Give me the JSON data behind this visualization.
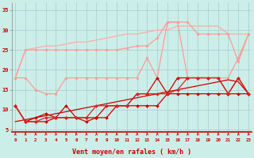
{
  "background_color": "#cceee8",
  "grid_color": "#aacccc",
  "xlabel": "Vent moyen/en rafales ( km/h )",
  "xlabel_color": "#cc0000",
  "tick_color": "#cc0000",
  "x_ticks": [
    0,
    1,
    2,
    3,
    4,
    5,
    6,
    7,
    8,
    9,
    10,
    11,
    12,
    13,
    14,
    15,
    16,
    17,
    18,
    19,
    20,
    21,
    22,
    23
  ],
  "ylim": [
    4.5,
    37
  ],
  "xlim": [
    -0.3,
    23.3
  ],
  "yticks": [
    5,
    10,
    15,
    20,
    25,
    30,
    35
  ],
  "series": [
    {
      "x": [
        0,
        1,
        2,
        3,
        4,
        5,
        6,
        7,
        8,
        9,
        10,
        11,
        12,
        13,
        14,
        15,
        16,
        17,
        18,
        19,
        20,
        21,
        22,
        23
      ],
      "y": [
        18,
        25,
        25.5,
        26,
        26,
        26.5,
        27,
        27,
        27.5,
        28,
        28.5,
        29,
        29,
        29.5,
        30,
        30,
        31,
        31,
        31,
        31,
        31,
        29,
        29,
        29
      ],
      "color": "#ffaaaa",
      "linewidth": 0.9,
      "marker": null,
      "markersize": 0
    },
    {
      "x": [
        0,
        1,
        2,
        3,
        4,
        5,
        6,
        7,
        8,
        9,
        10,
        11,
        12,
        13,
        14,
        15,
        16,
        17,
        18,
        19,
        20,
        21,
        22,
        23
      ],
      "y": [
        18,
        25,
        25,
        25,
        25,
        25,
        25,
        25,
        25,
        25,
        25,
        25.5,
        26,
        26,
        28,
        32,
        32,
        32,
        29,
        29,
        29,
        29,
        22,
        29
      ],
      "color": "#ff9999",
      "linewidth": 0.9,
      "marker": "o",
      "markersize": 2.0
    },
    {
      "x": [
        0,
        1,
        2,
        3,
        4,
        5,
        6,
        7,
        8,
        9,
        10,
        11,
        12,
        13,
        14,
        15,
        16,
        17,
        18,
        19,
        20,
        21,
        22,
        23
      ],
      "y": [
        18,
        18,
        15,
        14,
        14,
        18,
        18,
        18,
        18,
        18,
        18,
        18,
        18,
        23,
        18,
        32,
        32,
        18,
        18,
        18,
        18,
        18,
        23,
        29
      ],
      "color": "#ff9999",
      "linewidth": 0.9,
      "marker": "o",
      "markersize": 2.0
    },
    {
      "x": [
        0,
        1,
        2,
        3,
        4,
        5,
        6,
        7,
        8,
        9,
        10,
        11,
        12,
        13,
        14,
        15,
        16,
        17,
        18,
        19,
        20,
        21,
        22,
        23
      ],
      "y": [
        7,
        7.5,
        8,
        8.5,
        9,
        9.5,
        10,
        10.5,
        11,
        11.5,
        12,
        12.5,
        13,
        13.5,
        14,
        14.5,
        15,
        15.5,
        16,
        16.5,
        17,
        17.5,
        17,
        14
      ],
      "color": "#cc0000",
      "linewidth": 0.9,
      "marker": null,
      "markersize": 0
    },
    {
      "x": [
        0,
        1,
        2,
        3,
        4,
        5,
        6,
        7,
        8,
        9,
        10,
        11,
        12,
        13,
        14,
        15,
        16,
        17,
        18,
        19,
        20,
        21,
        22,
        23
      ],
      "y": [
        11,
        7,
        8,
        9,
        8,
        11,
        8,
        8,
        8,
        11,
        11,
        11,
        14,
        14,
        18,
        14,
        18,
        18,
        18,
        18,
        18,
        14,
        18,
        14
      ],
      "color": "#cc0000",
      "linewidth": 0.9,
      "marker": "D",
      "markersize": 2.0
    },
    {
      "x": [
        0,
        1,
        2,
        3,
        4,
        5,
        6,
        7,
        8,
        9,
        10,
        11,
        12,
        13,
        14,
        15,
        16,
        17,
        18,
        19,
        20,
        21,
        22,
        23
      ],
      "y": [
        11,
        7,
        7,
        7,
        8,
        8,
        8,
        7,
        8,
        8,
        11,
        11,
        11,
        11,
        11,
        14,
        14,
        14,
        14,
        14,
        14,
        14,
        14,
        14
      ],
      "color": "#cc0000",
      "linewidth": 0.9,
      "marker": "D",
      "markersize": 2.0
    },
    {
      "x": [
        0,
        1,
        2,
        3,
        4,
        5,
        6,
        7,
        8,
        9,
        10,
        11,
        12,
        13,
        14,
        15,
        16,
        17,
        18,
        19,
        20,
        21,
        22,
        23
      ],
      "y": [
        11,
        7,
        7,
        8,
        8,
        8,
        8,
        8,
        11,
        11,
        11,
        11,
        14,
        14,
        14,
        14,
        15,
        18,
        18,
        18,
        18,
        14,
        18,
        14
      ],
      "color": "#dd2222",
      "linewidth": 0.9,
      "marker": "D",
      "markersize": 2.0
    }
  ],
  "arrow_angles": [
    90,
    90,
    75,
    60,
    60,
    75,
    60,
    60,
    75,
    75,
    75,
    75,
    60,
    60,
    75,
    75,
    60,
    75,
    60,
    75,
    60,
    75,
    75,
    60
  ]
}
